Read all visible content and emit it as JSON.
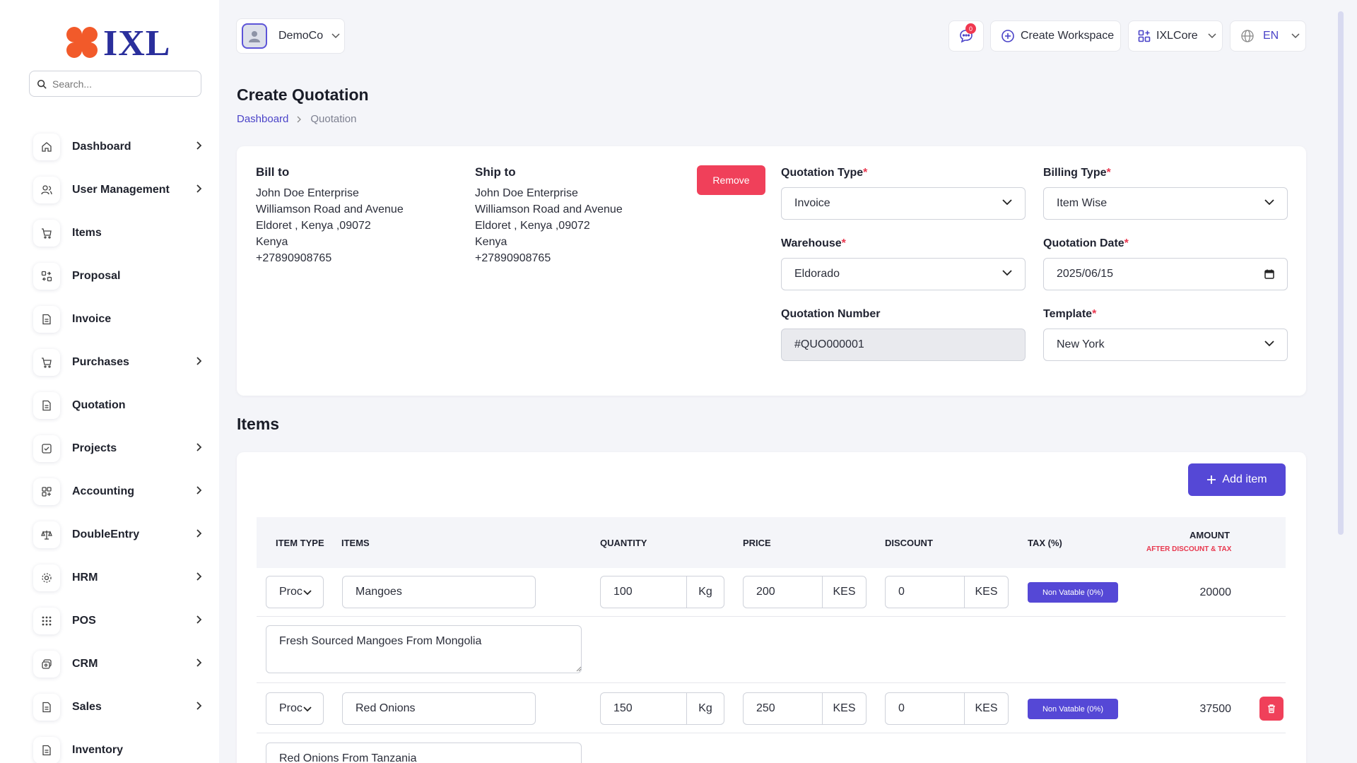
{
  "brand": {
    "logo_text": "IXL",
    "logo_color": "#f25a2a",
    "text_color": "#2a2f9c"
  },
  "search": {
    "placeholder": "Search..."
  },
  "sidebar": {
    "items": [
      {
        "label": "Dashboard",
        "icon": "home-icon",
        "has_submenu": true
      },
      {
        "label": "User Management",
        "icon": "users-icon",
        "has_submenu": true
      },
      {
        "label": "Items",
        "icon": "cart-icon",
        "has_submenu": false
      },
      {
        "label": "Proposal",
        "icon": "proposal-icon",
        "has_submenu": false
      },
      {
        "label": "Invoice",
        "icon": "document-icon",
        "has_submenu": false
      },
      {
        "label": "Purchases",
        "icon": "cart-icon",
        "has_submenu": true
      },
      {
        "label": "Quotation",
        "icon": "document-icon",
        "has_submenu": false
      },
      {
        "label": "Projects",
        "icon": "checkbox-icon",
        "has_submenu": true
      },
      {
        "label": "Accounting",
        "icon": "grid-plus-icon",
        "has_submenu": true
      },
      {
        "label": "DoubleEntry",
        "icon": "scale-icon",
        "has_submenu": true
      },
      {
        "label": "HRM",
        "icon": "hrm-icon",
        "has_submenu": true
      },
      {
        "label": "POS",
        "icon": "dots-grid-icon",
        "has_submenu": true
      },
      {
        "label": "CRM",
        "icon": "crm-icon",
        "has_submenu": true
      },
      {
        "label": "Sales",
        "icon": "document-icon",
        "has_submenu": true
      },
      {
        "label": "Inventory",
        "icon": "document-icon",
        "has_submenu": false
      }
    ]
  },
  "topbar": {
    "company": "DemoCo",
    "notification_count": "0",
    "create_workspace": "Create Workspace",
    "workspace": "IXLCore",
    "language": "EN"
  },
  "page": {
    "title": "Create Quotation",
    "breadcrumb": {
      "home": "Dashboard",
      "current": "Quotation"
    }
  },
  "bill_to": {
    "title": "Bill to",
    "lines": [
      "John Doe Enterprise",
      "Williamson Road and Avenue",
      "Eldoret , Kenya ,09072",
      "Kenya",
      "+27890908765"
    ]
  },
  "ship_to": {
    "title": "Ship to",
    "lines": [
      "John Doe Enterprise",
      "Williamson Road and Avenue",
      "Eldoret , Kenya ,09072",
      "Kenya",
      "+27890908765"
    ]
  },
  "remove_label": "Remove",
  "form": {
    "quotation_type": {
      "label": "Quotation Type",
      "value": "Invoice"
    },
    "billing_type": {
      "label": "Billing Type",
      "value": "Item Wise"
    },
    "warehouse": {
      "label": "Warehouse",
      "value": "Eldorado"
    },
    "quotation_date": {
      "label": "Quotation Date",
      "value": "2025/06/15"
    },
    "quotation_number": {
      "label": "Quotation Number",
      "value": "#QUO000001"
    },
    "template": {
      "label": "Template",
      "value": "New York"
    },
    "required_mark": "*"
  },
  "items_section": {
    "title": "Items",
    "add_label": "Add item",
    "columns": {
      "item_type": "ITEM TYPE",
      "items": "ITEMS",
      "quantity": "QUANTITY",
      "price": "PRICE",
      "discount": "DISCOUNT",
      "tax": "TAX (%)",
      "amount": "AMOUNT",
      "amount_sub": "AFTER DISCOUNT & TAX"
    },
    "rows": [
      {
        "type": "Proc",
        "name": "Mangoes",
        "quantity": "100",
        "qty_unit": "Kg",
        "price": "200",
        "price_unit": "KES",
        "discount": "0",
        "discount_unit": "KES",
        "tax": "Non Vatable (0%)",
        "amount": "20000",
        "description": "Fresh Sourced Mangoes From Mongolia"
      },
      {
        "type": "Proc",
        "name": "Red Onions",
        "quantity": "150",
        "qty_unit": "Kg",
        "price": "250",
        "price_unit": "KES",
        "discount": "0",
        "discount_unit": "KES",
        "tax": "Non Vatable (0%)",
        "amount": "37500",
        "description": "Red Onions From Tanzania"
      }
    ]
  },
  "colors": {
    "primary": "#5548d6",
    "danger": "#f0405a",
    "background": "#f4f5f9"
  }
}
